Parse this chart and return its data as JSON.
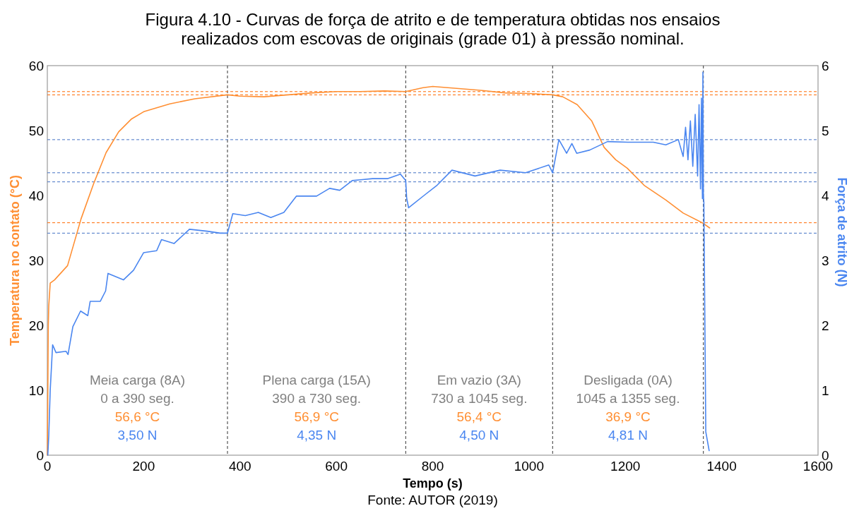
{
  "chart_data": {
    "type": "line",
    "title": "Figura 4.10 - Curvas de força de atrito e de temperatura obtidas nos ensaios realizados com escovas de originais (grade 01) à pressão nominal.",
    "xlabel": "Tempo (s)",
    "ylabel": "Temperatura no contato (°C)",
    "y2label": "Força de atrito (N)",
    "xlim": [
      0,
      1600
    ],
    "xticks": [
      0,
      200,
      400,
      600,
      800,
      1000,
      1200,
      1400,
      1600
    ],
    "ylim": [
      0,
      60
    ],
    "yticks": [
      0,
      10,
      20,
      30,
      40,
      50,
      60
    ],
    "y2lim": [
      0,
      6
    ],
    "y2ticks": [
      0,
      1,
      2,
      3,
      4,
      5,
      6
    ],
    "grid": false,
    "series": [
      {
        "color": "#ff8f33",
        "x": [
          0,
          2,
          3,
          6,
          15,
          42,
          70,
          96,
          122,
          148,
          175,
          200,
          254,
          306,
          374,
          400,
          450,
          500,
          550,
          600,
          650,
          700,
          744,
          780,
          800,
          850,
          900,
          950,
          1000,
          1049,
          1070,
          1100,
          1130,
          1156,
          1180,
          1204,
          1240,
          1284,
          1320,
          1362,
          1375
        ],
        "values": [
          0,
          20,
          23,
          26.5,
          27,
          29.2,
          36.4,
          41.8,
          46.6,
          49.8,
          51.8,
          52.9,
          54.1,
          54.9,
          55.5,
          55.3,
          55.2,
          55.5,
          55.8,
          56,
          56,
          56.1,
          56,
          56.6,
          56.8,
          56.5,
          56.2,
          55.8,
          55.7,
          55.5,
          55.2,
          54,
          51.5,
          47.4,
          45.5,
          44.2,
          41.5,
          39.3,
          37.3,
          35.7,
          35
        ]
      },
      {
        "color": "#4a86f0",
        "axis": "y2",
        "x": [
          1,
          3,
          6,
          11,
          18,
          39,
          43,
          53,
          69,
          84,
          89,
          110,
          121,
          126,
          158,
          179,
          200,
          227,
          237,
          263,
          295,
          332,
          359,
          374,
          385,
          411,
          438,
          464,
          491,
          517,
          559,
          586,
          607,
          633,
          675,
          707,
          733,
          744,
          746,
          750,
          782,
          808,
          840,
          888,
          940,
          993,
          1041,
          1049,
          1062,
          1078,
          1089,
          1099,
          1126,
          1163,
          1205,
          1258,
          1284,
          1310,
          1320,
          1325,
          1330,
          1335,
          1340,
          1345,
          1350,
          1353,
          1356,
          1358,
          1360,
          1361,
          1362,
          1363,
          1367,
          1374
        ],
        "values": [
          0,
          0.3,
          1,
          1.7,
          1.58,
          1.6,
          1.55,
          1.98,
          2.22,
          2.15,
          2.37,
          2.37,
          2.53,
          2.8,
          2.7,
          2.85,
          3.12,
          3.15,
          3.32,
          3.26,
          3.48,
          3.45,
          3.42,
          3.42,
          3.72,
          3.69,
          3.74,
          3.66,
          3.74,
          3.99,
          3.99,
          4.11,
          4.08,
          4.23,
          4.26,
          4.26,
          4.33,
          4.23,
          3.96,
          3.81,
          4,
          4.15,
          4.39,
          4.3,
          4.39,
          4.35,
          4.47,
          4.35,
          4.86,
          4.65,
          4.8,
          4.65,
          4.7,
          4.83,
          4.82,
          4.82,
          4.78,
          4.86,
          4.6,
          5.05,
          4.55,
          5.15,
          4.45,
          5.25,
          4.3,
          5.4,
          4.1,
          5.5,
          3.95,
          5.9,
          4,
          3.9,
          0.36,
          0.07
        ]
      }
    ],
    "ref_lines": [
      {
        "axis": "x",
        "value": 374,
        "color": "#333333",
        "line_style": "dashed"
      },
      {
        "axis": "x",
        "value": 744,
        "color": "#333333",
        "line_style": "dashed"
      },
      {
        "axis": "x",
        "value": 1049,
        "color": "#333333",
        "line_style": "dashed"
      },
      {
        "axis": "x",
        "value": 1362,
        "color": "#333333",
        "line_style": "dashed"
      },
      {
        "axis": "y",
        "value": 56,
        "color": "#ff6a00",
        "line_style": "dashed"
      },
      {
        "axis": "y",
        "value": 55.5,
        "color": "#ff6a00",
        "line_style": "dashed"
      },
      {
        "axis": "y",
        "value": 35.8,
        "color": "#ff6a00",
        "line_style": "dashed"
      },
      {
        "axis": "y2",
        "value": 4.86,
        "color": "#4472c4",
        "line_style": "dashed"
      },
      {
        "axis": "y2",
        "value": 4.35,
        "color": "#4472c4",
        "line_style": "dashed"
      },
      {
        "axis": "y2",
        "value": 4.21,
        "color": "#4472c4",
        "line_style": "dashed"
      },
      {
        "axis": "y2",
        "value": 3.42,
        "color": "#4472c4",
        "line_style": "dashed"
      }
    ],
    "annotations": [
      "Meia carga (8A)",
      "0 a 390 seg.",
      "56,6 °C",
      "3,50 N",
      "Plena carga (15A)",
      "390 a 730 seg.",
      "56,9 °C",
      "4,35 N",
      "Em vazio (3A)",
      "730 a 1045 seg.",
      "56,4 °C",
      "4,50 N",
      "Desligada (0A)",
      "1045 a 1355 seg.",
      "36,9 °C",
      "4,81 N",
      "Fonte: AUTOR (2019)"
    ]
  }
}
